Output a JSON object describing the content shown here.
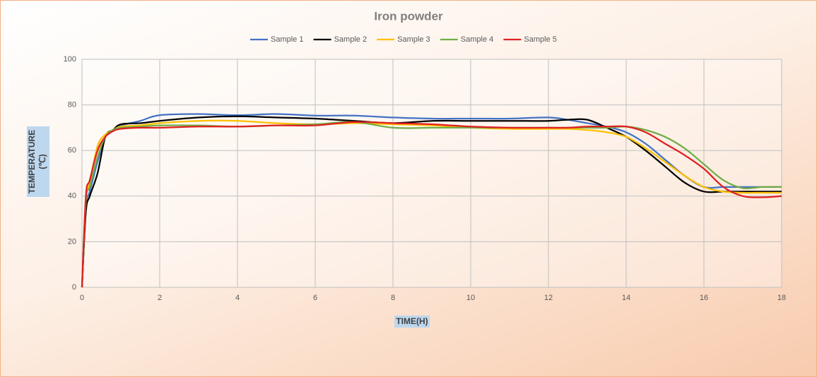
{
  "chart_data": {
    "type": "line",
    "title": "Iron powder",
    "x_label": "TIME(H)",
    "y_label": "TEMPERATURE (℃)",
    "x": [
      0,
      0.1,
      0.2,
      0.4,
      0.6,
      0.8,
      1,
      1.5,
      2,
      3,
      4,
      5,
      6,
      7,
      8,
      9,
      10,
      11,
      12,
      12.5,
      13,
      13.5,
      14,
      14.5,
      15,
      15.5,
      16,
      16.5,
      17,
      17.5,
      18
    ],
    "series": [
      {
        "name": "Sample 1",
        "color": "#4472c4",
        "values": [
          0,
          35,
          42,
          55,
          66,
          69,
          71,
          73,
          75.5,
          76,
          75.5,
          76,
          75.3,
          75.3,
          74.5,
          74,
          74,
          74,
          74.5,
          73.5,
          72,
          70.5,
          68,
          63,
          56,
          49,
          44,
          44,
          44,
          44,
          44
        ]
      },
      {
        "name": "Sample 2",
        "color": "#000000",
        "values": [
          0,
          33,
          40,
          50,
          66,
          69,
          71.5,
          72,
          73,
          74.5,
          75,
          74.5,
          74,
          73,
          72,
          73,
          73,
          73,
          73,
          73.5,
          73.5,
          70,
          66,
          60,
          53,
          46,
          42,
          42,
          42,
          42,
          42
        ]
      },
      {
        "name": "Sample 3",
        "color": "#ffc000",
        "values": [
          0,
          38,
          46,
          62,
          67,
          69,
          70.5,
          71,
          72,
          73,
          73,
          72,
          71.5,
          72,
          71.5,
          71,
          70,
          69.5,
          69.5,
          69.5,
          69,
          68,
          66,
          61,
          55,
          49,
          44,
          42,
          41.5,
          41.5,
          41.5
        ]
      },
      {
        "name": "Sample 4",
        "color": "#70ad47",
        "values": [
          0,
          38,
          44,
          57,
          66,
          69,
          70,
          70.5,
          71,
          71,
          70.5,
          71,
          71.5,
          72.5,
          70,
          70,
          70,
          70,
          70,
          70,
          70,
          70,
          70.5,
          69,
          66,
          61,
          54,
          47,
          43.5,
          44,
          44
        ]
      },
      {
        "name": "Sample 5",
        "color": "#e02020",
        "values": [
          0,
          40,
          47,
          60,
          66,
          68.5,
          69.5,
          70,
          70,
          70.5,
          70.5,
          71,
          71,
          72.5,
          72,
          71.5,
          70.5,
          70,
          70,
          70,
          70.5,
          70.5,
          70.5,
          68,
          63,
          58,
          52,
          44,
          40,
          39.5,
          40
        ]
      }
    ],
    "xlim": [
      0,
      18
    ],
    "xticks": [
      0,
      2,
      4,
      6,
      8,
      10,
      12,
      14,
      16,
      18
    ],
    "ylim": [
      0,
      100
    ],
    "yticks": [
      0,
      20,
      40,
      60,
      80,
      100
    ],
    "grid": true
  }
}
